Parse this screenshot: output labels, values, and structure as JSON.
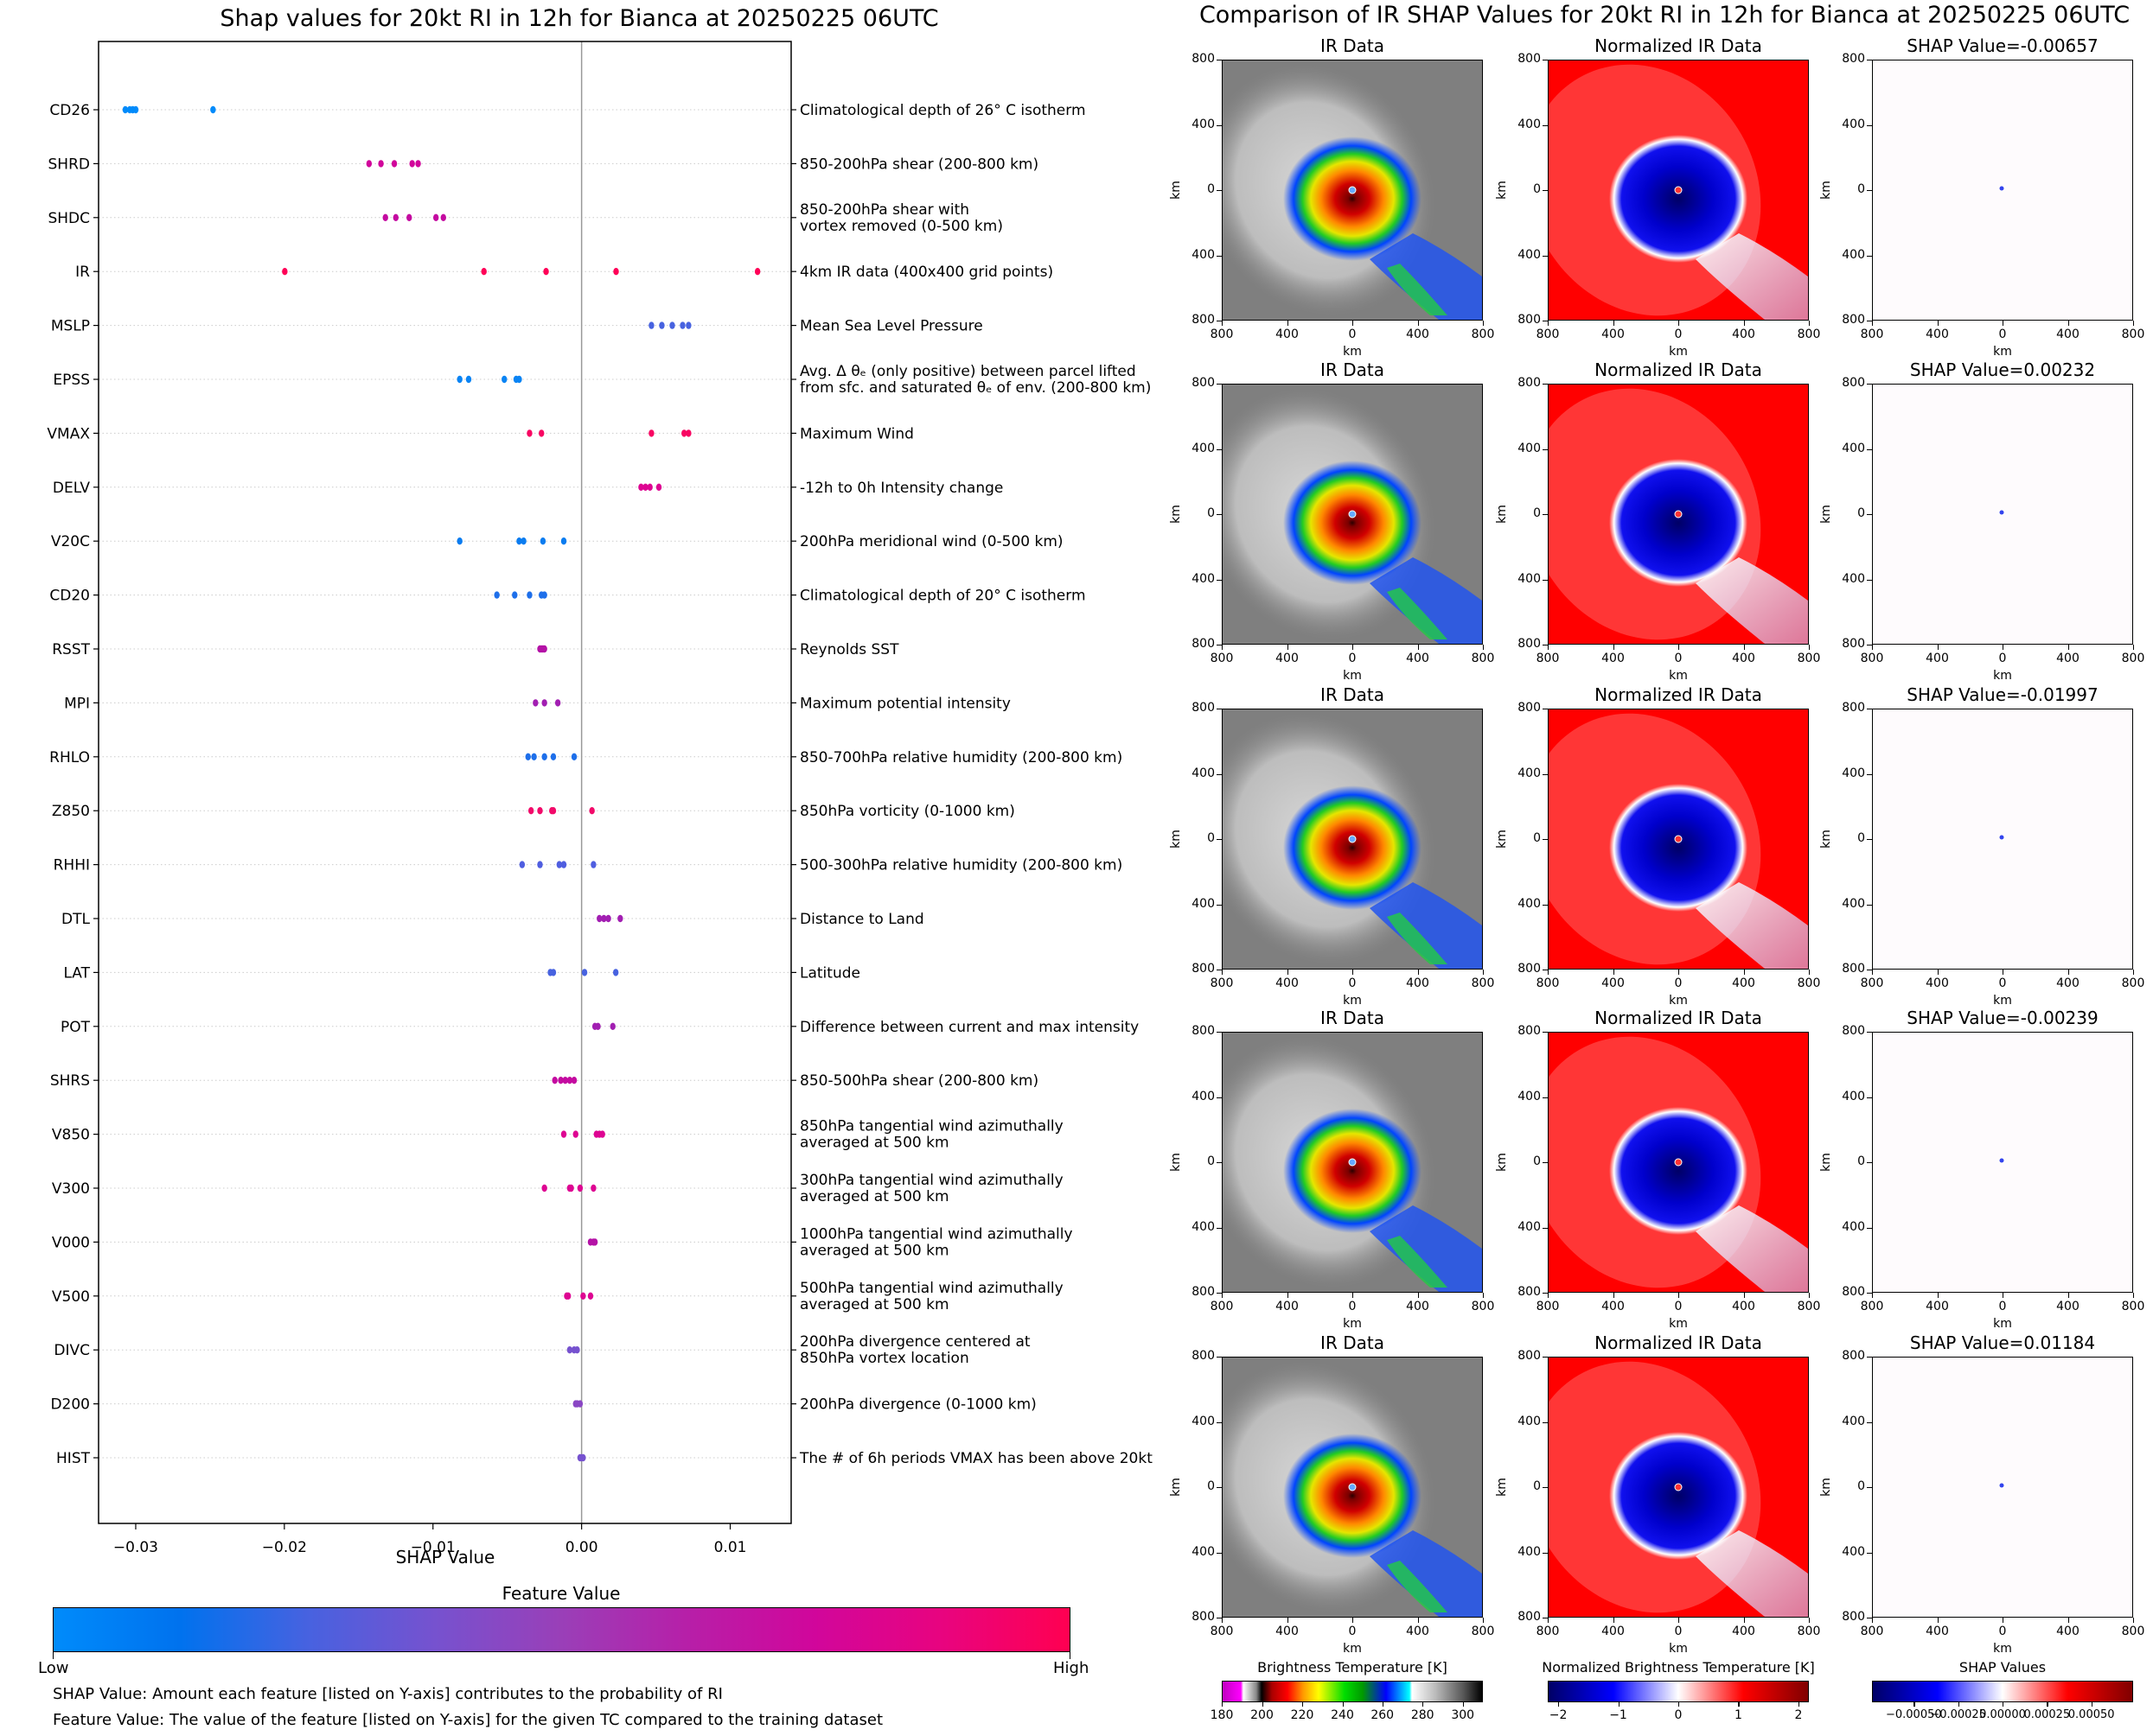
{
  "left": {
    "title": "Shap values for 20kt RI in 12h for Bianca at 20250225 06UTC",
    "xlabel": "SHAP Value",
    "colorbar": {
      "title": "Feature Value",
      "low": "Low",
      "high": "High",
      "colors": [
        "#008bfb",
        "#0072ee",
        "#4762e0",
        "#7652cf",
        "#9a3fb8",
        "#b71fa8",
        "#d1069b",
        "#e8047f",
        "#ff0051"
      ]
    },
    "notes": [
      "SHAP Value: Amount each feature [listed on Y-axis] contributes to the probability of RI",
      "Feature Value: The value of the feature [listed on Y-axis] for the given TC compared to the training dataset"
    ]
  },
  "right": {
    "title": "Comparison of IR SHAP Values for 20kt RI in 12h for Bianca at 20250225 06UTC",
    "col_titles": [
      "IR Data",
      "Normalized IR Data"
    ],
    "shap_titles": [
      "SHAP Value=-0.00657",
      "SHAP Value=0.00232",
      "SHAP Value=-0.01997",
      "SHAP Value=-0.00239",
      "SHAP Value=0.01184"
    ],
    "axis_ticks": [
      "800",
      "400",
      "0",
      "400",
      "800"
    ],
    "axis_label": "km",
    "colorbars": [
      {
        "title": "Brightness Temperature [K]",
        "ticks": [
          "180",
          "200",
          "220",
          "240",
          "260",
          "280",
          "300"
        ]
      },
      {
        "title": "Normalized Brightness Temperature [K]",
        "ticks": [
          "−2",
          "−1",
          "0",
          "1",
          "2"
        ]
      },
      {
        "title": "SHAP Values",
        "ticks": [
          "−0.00050",
          "−0.00025",
          "0.00000",
          "0.00025",
          "0.00050"
        ]
      }
    ]
  },
  "chart_data": {
    "type": "scatter",
    "title": "Shap values for 20kt RI in 12h for Bianca at 20250225 06UTC",
    "xlabel": "SHAP Value",
    "ylabel": "",
    "xlim": [
      -0.0325,
      0.0141
    ],
    "xticks": [
      "−0.03",
      "−0.02",
      "−0.01",
      "0.00",
      "0.01"
    ],
    "xtick_values": [
      -0.03,
      -0.02,
      -0.01,
      0.0,
      0.01
    ],
    "grid": "horizontal dotted",
    "colorbar": "Feature Value (Low to High)",
    "features": [
      {
        "name": "CD26",
        "desc": [
          "Climatological depth of 26° C isotherm"
        ],
        "color": "#008bfb",
        "x": [
          -0.0307,
          -0.0304,
          -0.0302,
          -0.03,
          -0.0248
        ]
      },
      {
        "name": "SHRD",
        "desc": [
          "850-200hPa shear (200-800 km)"
        ],
        "color": "#d1069b",
        "x": [
          -0.0143,
          -0.0135,
          -0.0126,
          -0.0114,
          -0.011
        ]
      },
      {
        "name": "SHDC",
        "desc": [
          "850-200hPa shear with",
          "vortex removed (0-500 km)"
        ],
        "color": "#c40aa0",
        "x": [
          -0.0132,
          -0.0125,
          -0.0116,
          -0.0098,
          -0.0093
        ]
      },
      {
        "name": "IR",
        "desc": [
          "4km IR data (400x400 grid points)"
        ],
        "color": "#ff0057",
        "x": [
          -0.01997,
          -0.00657,
          -0.00239,
          0.00232,
          0.01184
        ]
      },
      {
        "name": "MSLP",
        "desc": [
          "Mean Sea Level Pressure"
        ],
        "color": "#4762e0",
        "x": [
          0.0047,
          0.0054,
          0.0061,
          0.0068,
          0.0072
        ]
      },
      {
        "name": "EPSS",
        "desc": [
          "Avg. Δ θₑ (only positive) between parcel lifted",
          "from sfc. and saturated θₑ of env. (200-800 km)"
        ],
        "color": "#0a84f4",
        "x": [
          -0.0082,
          -0.0076,
          -0.0052,
          -0.0044,
          -0.0042
        ]
      },
      {
        "name": "VMAX",
        "desc": [
          "Maximum Wind"
        ],
        "color": "#f80662",
        "x": [
          -0.0035,
          -0.0027,
          0.0047,
          0.0069,
          0.0072
        ]
      },
      {
        "name": "DELV",
        "desc": [
          "-12h to 0h Intensity change"
        ],
        "color": "#de0592",
        "x": [
          0.004,
          0.0043,
          0.0046,
          0.0052
        ]
      },
      {
        "name": "V20C",
        "desc": [
          "200hPa meridional wind (0-500 km)"
        ],
        "color": "#0a7cf0",
        "x": [
          -0.0082,
          -0.0042,
          -0.0039,
          -0.0026,
          -0.0012
        ]
      },
      {
        "name": "CD20",
        "desc": [
          "Climatological depth of 20° C isotherm"
        ],
        "color": "#1e6fea",
        "x": [
          -0.0057,
          -0.0045,
          -0.0035,
          -0.0027,
          -0.0025
        ]
      },
      {
        "name": "RSST",
        "desc": [
          "Reynolds SST"
        ],
        "color": "#b412a6",
        "x": [
          -0.0028,
          -0.0027,
          -0.0026,
          -0.0025
        ]
      },
      {
        "name": "MPI",
        "desc": [
          "Maximum potential intensity"
        ],
        "color": "#a21fb2",
        "x": [
          -0.0031,
          -0.0025,
          -0.0016
        ]
      },
      {
        "name": "RHLO",
        "desc": [
          "850-700hPa relative humidity (200-800 km)"
        ],
        "color": "#1e6fea",
        "x": [
          -0.0036,
          -0.0032,
          -0.0025,
          -0.0019,
          -0.0005
        ]
      },
      {
        "name": "Z850",
        "desc": [
          "850hPa vorticity (0-1000 km)"
        ],
        "color": "#f20a6a",
        "x": [
          -0.0034,
          -0.0028,
          -0.002,
          -0.0019,
          0.0007
        ]
      },
      {
        "name": "RHHI",
        "desc": [
          "500-300hPa relative humidity (200-800 km)"
        ],
        "color": "#4f5ee0",
        "x": [
          -0.004,
          -0.0028,
          -0.0015,
          -0.0012,
          0.0008
        ]
      },
      {
        "name": "DTL",
        "desc": [
          "Distance to Land"
        ],
        "color": "#a21fb2",
        "x": [
          0.0012,
          0.0015,
          0.0018,
          0.0026
        ]
      },
      {
        "name": "LAT",
        "desc": [
          "Latitude"
        ],
        "color": "#4762e0",
        "x": [
          -0.0021,
          -0.0019,
          0.0002,
          0.0023
        ]
      },
      {
        "name": "POT",
        "desc": [
          "Difference between current and max intensity"
        ],
        "color": "#a21fb2",
        "x": [
          0.0009,
          0.0011,
          0.0021
        ]
      },
      {
        "name": "SHRS",
        "desc": [
          "850-500hPa shear (200-800 km)"
        ],
        "color": "#c40aa0",
        "x": [
          -0.0018,
          -0.0014,
          -0.0011,
          -0.0008,
          -0.0005
        ]
      },
      {
        "name": "V850",
        "desc": [
          "850hPa tangential wind azimuthally",
          "averaged at 500 km"
        ],
        "color": "#de0592",
        "x": [
          -0.0012,
          -0.0004,
          0.001,
          0.0012,
          0.0014
        ]
      },
      {
        "name": "V300",
        "desc": [
          "300hPa tangential wind azimuthally",
          "averaged at 500 km"
        ],
        "color": "#de0592",
        "x": [
          -0.0025,
          -0.0008,
          -0.0007,
          -0.0001,
          0.0008
        ]
      },
      {
        "name": "V000",
        "desc": [
          "1000hPa tangential wind azimuthally",
          "averaged at 500 km"
        ],
        "color": "#b412a6",
        "x": [
          0.0006,
          0.0008,
          0.0009
        ]
      },
      {
        "name": "V500",
        "desc": [
          "500hPa tangential wind azimuthally",
          "averaged at 500 km"
        ],
        "color": "#de0592",
        "x": [
          -0.001,
          -0.0009,
          0.0001,
          0.0006
        ]
      },
      {
        "name": "DIVC",
        "desc": [
          "200hPa divergence centered at",
          "850hPa vortex location"
        ],
        "color": "#7652cf",
        "x": [
          -0.0008,
          -0.0005,
          -0.0003
        ]
      },
      {
        "name": "D200",
        "desc": [
          "200hPa divergence (0-1000 km)"
        ],
        "color": "#8a46c4",
        "x": [
          -0.0004,
          -0.0003,
          -0.0001
        ]
      },
      {
        "name": "HIST",
        "desc": [
          "The # of 6h periods VMAX has been above 20kt"
        ],
        "color": "#7652cf",
        "x": [
          -0.0001,
          0.0,
          0.0001
        ]
      }
    ]
  }
}
